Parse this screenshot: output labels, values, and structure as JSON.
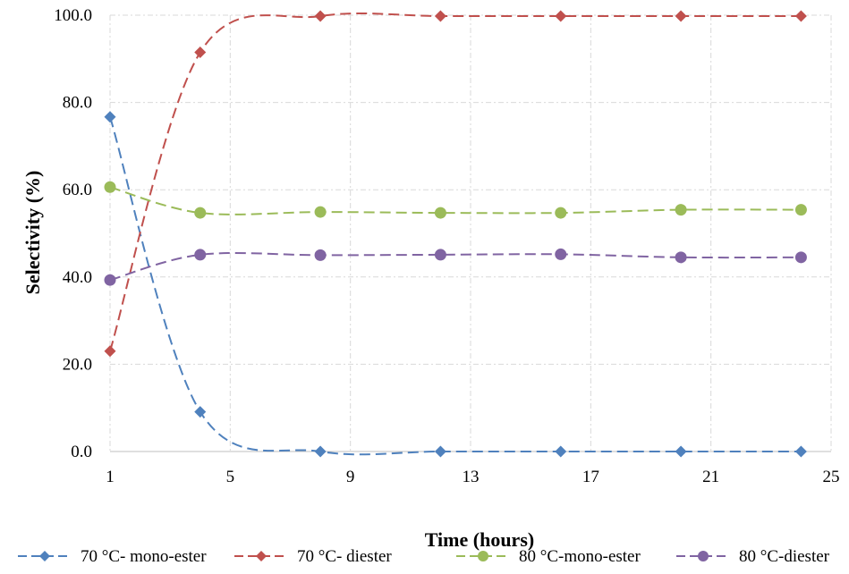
{
  "chart_data": {
    "type": "line",
    "title": "",
    "xlabel": "Time (hours)",
    "ylabel": "Selectivity  (%)",
    "xlim": [
      1,
      25
    ],
    "ylim": [
      0,
      100
    ],
    "xticks": [
      1,
      5,
      9,
      13,
      17,
      21,
      25
    ],
    "yticks": [
      0,
      20,
      40,
      60,
      80,
      100
    ],
    "ytick_labels": [
      "0.0",
      "20.0",
      "40.0",
      "60.0",
      "80.0",
      "100.0"
    ],
    "grid": true,
    "legend_position": "bottom",
    "series": [
      {
        "name": "70 °C- mono-ester",
        "color": "#4f81bd",
        "marker": "diamond",
        "x": [
          1,
          4,
          8,
          12,
          16,
          20,
          24
        ],
        "y": [
          76.7,
          9.1,
          0.0,
          0.0,
          0.0,
          0.0,
          0.0
        ]
      },
      {
        "name": "70 °C- diester",
        "color": "#c0504d",
        "marker": "diamond",
        "x": [
          1,
          4,
          8,
          12,
          16,
          20,
          24
        ],
        "y": [
          23.0,
          91.5,
          99.8,
          99.8,
          99.8,
          99.8,
          99.8
        ]
      },
      {
        "name": "80 °C-mono-ester",
        "color": "#9bbb59",
        "marker": "circle",
        "x": [
          1,
          4,
          8,
          12,
          16,
          20,
          24
        ],
        "y": [
          60.6,
          54.7,
          54.9,
          54.7,
          54.7,
          55.4,
          55.4
        ]
      },
      {
        "name": "80 °C-diester",
        "color": "#8064a2",
        "marker": "circle",
        "x": [
          1,
          4,
          8,
          12,
          16,
          20,
          24
        ],
        "y": [
          39.3,
          45.1,
          45.0,
          45.1,
          45.2,
          44.5,
          44.5
        ]
      }
    ]
  }
}
